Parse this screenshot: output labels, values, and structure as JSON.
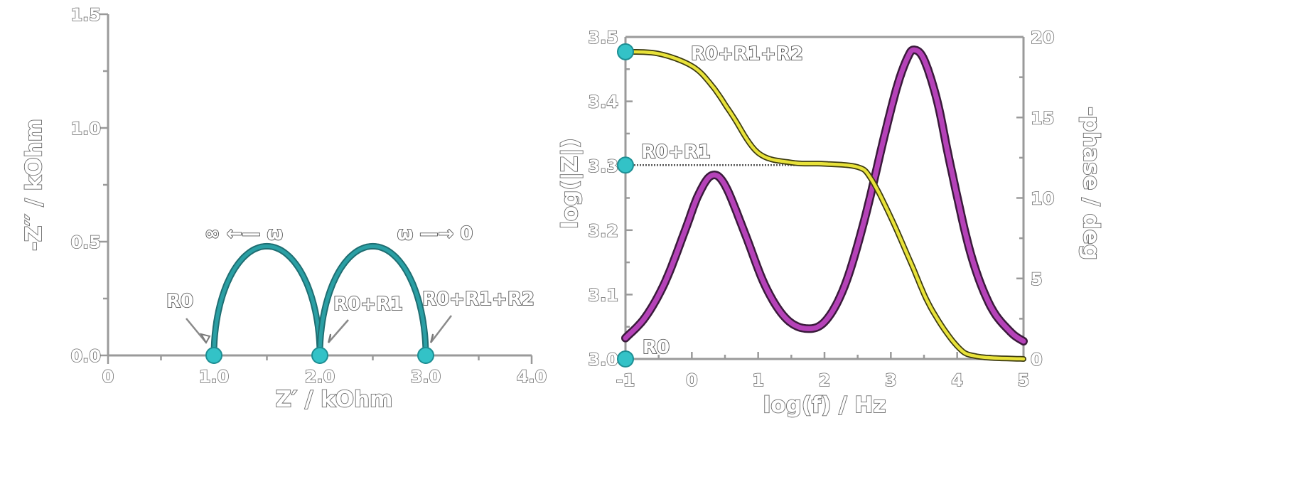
{
  "chart_data": [
    {
      "type": "line",
      "name": "nyquist",
      "xlabel": "Z′ / kOhm",
      "ylabel": "-Z′′ / kOhm",
      "xlim": [
        0,
        4.0
      ],
      "ylim": [
        0,
        1.5
      ],
      "x_ticks": [
        0,
        1.0,
        2.0,
        3.0,
        4.0
      ],
      "x_tick_labels": [
        "0",
        "1.0",
        "2.0",
        "3.0",
        "4.0"
      ],
      "y_ticks": [
        0,
        0.5,
        1.0,
        1.5
      ],
      "y_tick_labels": [
        "0.0",
        "0.5",
        "1.0",
        "1.5"
      ],
      "series": [
        {
          "color": "#2a9fa4",
          "arcs": [
            {
              "from": 1.0,
              "to": 2.0,
              "peak": 0.48
            },
            {
              "from": 2.0,
              "to": 3.0,
              "peak": 0.48
            }
          ]
        }
      ],
      "markers": [
        {
          "x": 1.0,
          "y": 0
        },
        {
          "x": 2.0,
          "y": 0
        },
        {
          "x": 3.0,
          "y": 0
        }
      ],
      "annotations": [
        {
          "text": "R0",
          "target": {
            "x": 1.0,
            "y": 0
          }
        },
        {
          "text": "R0+R1",
          "target": {
            "x": 2.0,
            "y": 0
          }
        },
        {
          "text": "R0+R1+R2",
          "target": {
            "x": 3.0,
            "y": 0
          }
        }
      ],
      "direction_labels": [
        {
          "text": "∞ ←— ω"
        },
        {
          "text": "ω —→ 0"
        }
      ]
    },
    {
      "type": "line",
      "name": "bode",
      "xlabel": "log(f) / Hz",
      "ylabel_left": "log(|Z|)",
      "ylabel_right": "-phase / deg",
      "xlim": [
        -1,
        5
      ],
      "ylim_left": [
        3.0,
        3.5
      ],
      "ylim_right": [
        0,
        20
      ],
      "x_ticks": [
        -1,
        0,
        1,
        2,
        3,
        4,
        5
      ],
      "x_tick_labels": [
        "-1",
        "0",
        "1",
        "2",
        "3",
        "4",
        "5"
      ],
      "y_left_ticks": [
        3.0,
        3.1,
        3.2,
        3.3,
        3.4,
        3.5
      ],
      "y_left_tick_labels": [
        "3.0",
        "3.1",
        "3.2",
        "3.3",
        "3.4",
        "3.5"
      ],
      "y_right_ticks": [
        0,
        5,
        10,
        15,
        20
      ],
      "y_right_tick_labels": [
        "0",
        "5",
        "10",
        "15",
        "20"
      ],
      "series": [
        {
          "axis": "left",
          "color": "#e8e23a",
          "x": [
            -1,
            -0.5,
            0,
            0.3,
            0.6,
            1.0,
            1.5,
            2.0,
            2.5,
            2.7,
            3.0,
            3.3,
            3.6,
            4.0,
            4.3,
            5.0
          ],
          "y": [
            3.477,
            3.474,
            3.455,
            3.425,
            3.38,
            3.32,
            3.305,
            3.303,
            3.298,
            3.28,
            3.22,
            3.15,
            3.08,
            3.02,
            3.004,
            3.0
          ]
        },
        {
          "axis": "right",
          "color": "#b542b8",
          "x": [
            -1,
            -0.7,
            -0.4,
            -0.1,
            0.1,
            0.3,
            0.5,
            0.8,
            1.1,
            1.4,
            1.7,
            2.0,
            2.3,
            2.6,
            2.9,
            3.1,
            3.25,
            3.35,
            3.5,
            3.7,
            3.9,
            4.2,
            4.5,
            4.8,
            5.0
          ],
          "y": [
            1.3,
            2.6,
            4.8,
            8.0,
            10.2,
            11.4,
            10.8,
            7.8,
            4.6,
            2.6,
            1.9,
            2.3,
            4.5,
            8.6,
            13.8,
            17.0,
            18.7,
            19.2,
            18.6,
            16.0,
            12.0,
            6.6,
            3.3,
            1.7,
            1.1
          ]
        }
      ],
      "reference_line": {
        "from": -1,
        "to": 2.2,
        "y": 3.301
      },
      "markers": [
        {
          "x": -1,
          "y": 3.477
        },
        {
          "x": -1,
          "y": 3.301
        },
        {
          "x": -1,
          "y": 3.0
        }
      ],
      "annotations": [
        {
          "text": "R0+R1+R2",
          "ref": {
            "x": -1,
            "y": 3.477
          }
        },
        {
          "text": "R0+R1",
          "ref": {
            "x": -1,
            "y": 3.301
          }
        },
        {
          "text": "R0",
          "ref": {
            "x": -1,
            "y": 3.0
          }
        }
      ]
    }
  ]
}
